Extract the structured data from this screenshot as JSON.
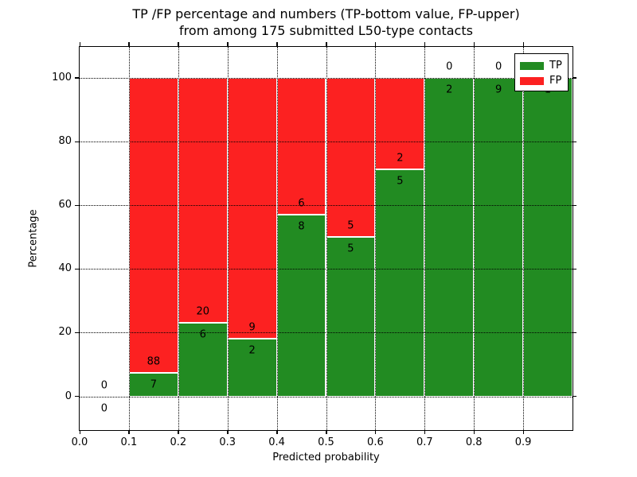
{
  "title": {
    "line1": "TP /FP percentage and numbers (TP-bottom value, FP-upper)",
    "line2": "from among 175 submitted L50-type contacts"
  },
  "axes": {
    "xlabel": "Predicted probability",
    "ylabel": "Percentage"
  },
  "colors": {
    "tp_green": "#228b22",
    "fp_red": "#fc2121",
    "bar_edge": "#ffffff",
    "grid": "#000000",
    "background": "#ffffff"
  },
  "chart_data": {
    "type": "bar",
    "stacked": true,
    "title": "TP /FP percentage and numbers (TP-bottom value, FP-upper) from among 175 submitted L50-type contacts",
    "xlabel": "Predicted probability",
    "ylabel": "Percentage",
    "total_contacts": 175,
    "xlim": [
      0.0,
      1.0
    ],
    "ylim": [
      -10.6,
      109.8
    ],
    "grid": true,
    "grid_style": "dotted",
    "x_tick_values": [
      0.0,
      0.1,
      0.2,
      0.3,
      0.4,
      0.5,
      0.6,
      0.7,
      0.8,
      0.9
    ],
    "x_tick_labels": [
      "0.0",
      "0.1",
      "0.2",
      "0.3",
      "0.4",
      "0.5",
      "0.6",
      "0.7",
      "0.8",
      "0.9"
    ],
    "y_tick_values": [
      0,
      20,
      40,
      60,
      80,
      100
    ],
    "y_tick_labels": [
      "0",
      "20",
      "40",
      "60",
      "80",
      "100"
    ],
    "legend": {
      "position": "upper right",
      "entries": [
        {
          "label": "TP",
          "color": "#228b22"
        },
        {
          "label": "FP",
          "color": "#fc2121"
        }
      ]
    },
    "bins": [
      {
        "range": [
          0.0,
          0.1
        ],
        "tp_count": 0,
        "fp_count": 0,
        "tp_pct": 0,
        "fp_pct": 0,
        "has_bar": false
      },
      {
        "range": [
          0.1,
          0.2
        ],
        "tp_count": 7,
        "fp_count": 88,
        "tp_pct": 7.37,
        "fp_pct": 92.63,
        "has_bar": true
      },
      {
        "range": [
          0.2,
          0.3
        ],
        "tp_count": 6,
        "fp_count": 20,
        "tp_pct": 23.08,
        "fp_pct": 76.92,
        "has_bar": true
      },
      {
        "range": [
          0.3,
          0.4
        ],
        "tp_count": 2,
        "fp_count": 9,
        "tp_pct": 18.18,
        "fp_pct": 81.82,
        "has_bar": true
      },
      {
        "range": [
          0.4,
          0.5
        ],
        "tp_count": 8,
        "fp_count": 6,
        "tp_pct": 57.14,
        "fp_pct": 42.86,
        "has_bar": true
      },
      {
        "range": [
          0.5,
          0.6
        ],
        "tp_count": 5,
        "fp_count": 5,
        "tp_pct": 50.0,
        "fp_pct": 50.0,
        "has_bar": true
      },
      {
        "range": [
          0.6,
          0.7
        ],
        "tp_count": 5,
        "fp_count": 2,
        "tp_pct": 71.43,
        "fp_pct": 28.57,
        "has_bar": true
      },
      {
        "range": [
          0.7,
          0.8
        ],
        "tp_count": 2,
        "fp_count": 0,
        "tp_pct": 100.0,
        "fp_pct": 0,
        "has_bar": true
      },
      {
        "range": [
          0.8,
          0.9
        ],
        "tp_count": 9,
        "fp_count": 0,
        "tp_pct": 100.0,
        "fp_pct": 0,
        "has_bar": true
      },
      {
        "range": [
          0.9,
          1.0
        ],
        "tp_count": 1,
        "fp_count": 0,
        "tp_pct": 100.0,
        "fp_pct": 0,
        "has_bar": true
      }
    ]
  }
}
